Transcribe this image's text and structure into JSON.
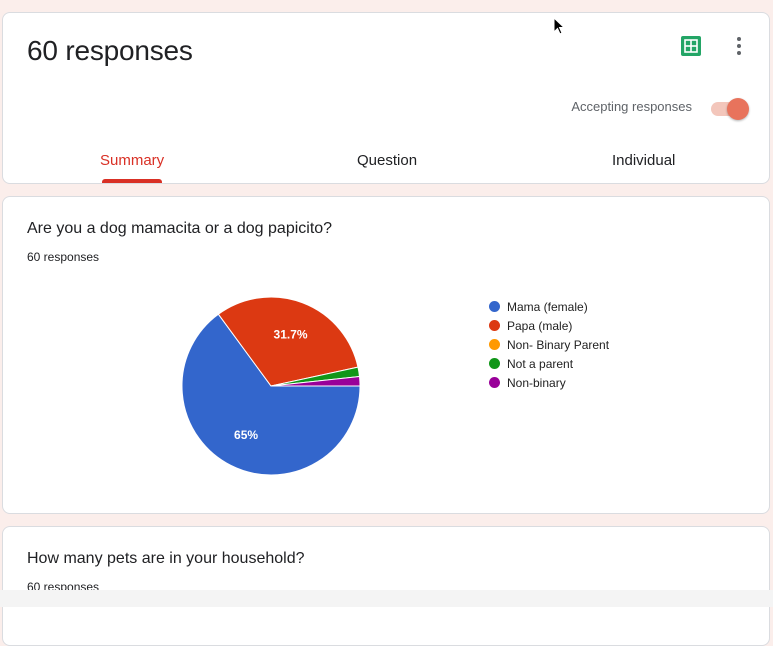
{
  "header": {
    "title": "60 responses",
    "accepting_label": "Accepting responses",
    "accepting": true,
    "sheets_icon": "google-sheets-icon",
    "more_icon": "more-vert-icon"
  },
  "tabs": [
    {
      "label": "Summary",
      "active": true
    },
    {
      "label": "Question",
      "active": false
    },
    {
      "label": "Individual",
      "active": false
    }
  ],
  "questions": [
    {
      "title": "Are you a dog mamacita or a dog papicito?",
      "responses": "60 responses"
    },
    {
      "title": "How many pets are in your household?",
      "responses": "60 responses"
    }
  ],
  "chart_data": {
    "type": "pie",
    "categories": [
      "Mama (female)",
      "Papa (male)",
      "Non- Binary Parent",
      "Not a parent",
      "Non-binary"
    ],
    "values": [
      65,
      31.7,
      0,
      1.7,
      1.7
    ],
    "data_labels": [
      "65%",
      "31.7%",
      "",
      "",
      ""
    ],
    "colors": [
      "#3366cc",
      "#dc3912",
      "#ff9900",
      "#109618",
      "#990099"
    ],
    "legend_position": "right"
  },
  "colors": {
    "accent": "#d93025",
    "background": "#fbeeeb"
  }
}
